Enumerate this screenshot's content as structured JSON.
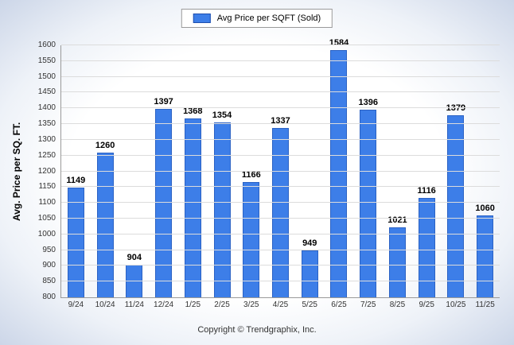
{
  "legend": {
    "label": "Avg Price per SQFT (Sold)"
  },
  "footer": "Copyright © Trendgraphix, Inc.",
  "colors": {
    "bar": "#3d7ee8",
    "bar_border": "#2b62c4",
    "legend_swatch": "#3d7ee8",
    "legend_swatch_border": "#1f4fae"
  },
  "chart_data": {
    "type": "bar",
    "categories": [
      "9/24",
      "10/24",
      "11/24",
      "12/24",
      "1/25",
      "2/25",
      "3/25",
      "4/25",
      "5/25",
      "6/25",
      "7/25",
      "8/25",
      "9/25",
      "10/25",
      "11/25"
    ],
    "values": [
      1149,
      1260,
      904,
      1397,
      1368,
      1354,
      1166,
      1337,
      949,
      1584,
      1396,
      1021,
      1116,
      1379,
      1060
    ],
    "title": "",
    "xlabel": "",
    "ylabel": "Avg. Price per SQ. FT.",
    "ylim": [
      800,
      1600
    ],
    "ytick_step": 50,
    "legend": [
      "Avg Price per SQFT (Sold)"
    ],
    "legend_position": "top",
    "grid": true
  }
}
